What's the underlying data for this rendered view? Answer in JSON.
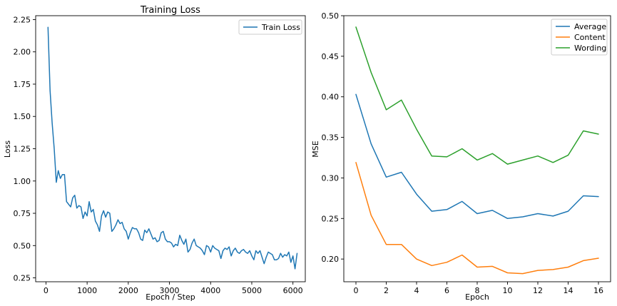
{
  "chart_data": [
    {
      "type": "line",
      "title": "Training Loss",
      "xlabel": "Epoch / Step",
      "ylabel": "Loss",
      "xlim": [
        -250,
        6300
      ],
      "ylim": [
        0.22,
        2.28
      ],
      "xticks": [
        0,
        1000,
        2000,
        3000,
        4000,
        5000,
        6000
      ],
      "xtick_labels": [
        "0",
        "1000",
        "2000",
        "3000",
        "4000",
        "5000",
        "6000"
      ],
      "yticks": [
        0.25,
        0.5,
        0.75,
        1.0,
        1.25,
        1.5,
        1.75,
        2.0,
        2.25
      ],
      "ytick_labels": [
        "0.25",
        "0.50",
        "0.75",
        "1.00",
        "1.25",
        "1.50",
        "1.75",
        "2.00",
        "2.25"
      ],
      "legend_position": "upper right",
      "series": [
        {
          "name": "Train Loss",
          "color": "#1f77b4",
          "x": [
            50,
            100,
            150,
            200,
            250,
            300,
            350,
            400,
            450,
            500,
            550,
            600,
            650,
            700,
            750,
            800,
            850,
            900,
            950,
            1000,
            1050,
            1100,
            1150,
            1200,
            1250,
            1300,
            1350,
            1400,
            1450,
            1500,
            1550,
            1600,
            1650,
            1700,
            1750,
            1800,
            1850,
            1900,
            1950,
            2000,
            2050,
            2100,
            2150,
            2200,
            2250,
            2300,
            2350,
            2400,
            2450,
            2500,
            2550,
            2600,
            2650,
            2700,
            2750,
            2800,
            2850,
            2900,
            2950,
            3000,
            3050,
            3100,
            3150,
            3200,
            3250,
            3300,
            3350,
            3400,
            3450,
            3500,
            3550,
            3600,
            3650,
            3700,
            3750,
            3800,
            3850,
            3900,
            3950,
            4000,
            4050,
            4100,
            4150,
            4200,
            4250,
            4300,
            4350,
            4400,
            4450,
            4500,
            4550,
            4600,
            4650,
            4700,
            4750,
            4800,
            4850,
            4900,
            4950,
            5000,
            5050,
            5100,
            5150,
            5200,
            5250,
            5300,
            5350,
            5400,
            5450,
            5500,
            5550,
            5600,
            5650,
            5700,
            5750,
            5800,
            5850,
            5900,
            5950,
            6000,
            6050,
            6100
          ],
          "y": [
            2.19,
            1.7,
            1.45,
            1.25,
            0.99,
            1.08,
            1.02,
            1.05,
            1.05,
            0.84,
            0.82,
            0.8,
            0.87,
            0.89,
            0.79,
            0.81,
            0.8,
            0.71,
            0.76,
            0.73,
            0.84,
            0.76,
            0.78,
            0.69,
            0.66,
            0.61,
            0.73,
            0.77,
            0.72,
            0.76,
            0.75,
            0.61,
            0.63,
            0.66,
            0.7,
            0.67,
            0.68,
            0.63,
            0.61,
            0.55,
            0.6,
            0.64,
            0.63,
            0.63,
            0.6,
            0.55,
            0.54,
            0.62,
            0.6,
            0.63,
            0.59,
            0.55,
            0.56,
            0.53,
            0.54,
            0.6,
            0.61,
            0.55,
            0.53,
            0.53,
            0.52,
            0.49,
            0.51,
            0.5,
            0.58,
            0.54,
            0.51,
            0.55,
            0.45,
            0.47,
            0.52,
            0.55,
            0.5,
            0.49,
            0.48,
            0.46,
            0.43,
            0.5,
            0.49,
            0.45,
            0.5,
            0.48,
            0.47,
            0.46,
            0.4,
            0.46,
            0.48,
            0.47,
            0.49,
            0.42,
            0.46,
            0.48,
            0.45,
            0.44,
            0.46,
            0.47,
            0.45,
            0.44,
            0.46,
            0.42,
            0.39,
            0.46,
            0.44,
            0.46,
            0.41,
            0.36,
            0.41,
            0.45,
            0.44,
            0.43,
            0.39,
            0.39,
            0.4,
            0.44,
            0.41,
            0.43,
            0.42,
            0.45,
            0.37,
            0.42,
            0.32,
            0.44
          ]
        }
      ]
    },
    {
      "type": "line",
      "title": "",
      "xlabel": "Epoch",
      "ylabel": "MSE",
      "xlim": [
        -0.8,
        16.8
      ],
      "ylim": [
        0.172,
        0.5
      ],
      "xticks": [
        0,
        2,
        4,
        6,
        8,
        10,
        12,
        14,
        16
      ],
      "xtick_labels": [
        "0",
        "2",
        "4",
        "6",
        "8",
        "10",
        "12",
        "14",
        "16"
      ],
      "yticks": [
        0.2,
        0.25,
        0.3,
        0.35,
        0.4,
        0.45,
        0.5
      ],
      "ytick_labels": [
        "0.20",
        "0.25",
        "0.30",
        "0.35",
        "0.40",
        "0.45",
        "0.50"
      ],
      "legend_position": "upper right",
      "x": [
        0,
        1,
        2,
        3,
        4,
        5,
        6,
        7,
        8,
        9,
        10,
        11,
        12,
        13,
        14,
        15,
        16
      ],
      "series": [
        {
          "name": "Average",
          "color": "#1f77b4",
          "values": [
            0.403,
            0.342,
            0.301,
            0.307,
            0.28,
            0.259,
            0.261,
            0.271,
            0.256,
            0.26,
            0.25,
            0.252,
            0.256,
            0.253,
            0.259,
            0.278,
            0.277
          ]
        },
        {
          "name": "Content",
          "color": "#ff7f0e",
          "values": [
            0.319,
            0.254,
            0.218,
            0.218,
            0.2,
            0.192,
            0.196,
            0.205,
            0.19,
            0.191,
            0.183,
            0.182,
            0.186,
            0.187,
            0.19,
            0.198,
            0.201
          ]
        },
        {
          "name": "Wording",
          "color": "#2ca02c",
          "values": [
            0.486,
            0.43,
            0.384,
            0.396,
            0.36,
            0.327,
            0.326,
            0.336,
            0.322,
            0.33,
            0.317,
            0.322,
            0.327,
            0.319,
            0.328,
            0.358,
            0.354
          ]
        }
      ]
    }
  ]
}
